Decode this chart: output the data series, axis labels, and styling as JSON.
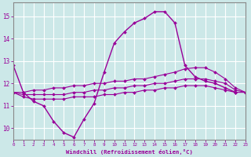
{
  "xlabel": "Windchill (Refroidissement éolien,°C)",
  "background_color": "#cce8e8",
  "grid_color": "#ffffff",
  "line_color": "#990099",
  "x_hours": [
    0,
    1,
    2,
    3,
    4,
    5,
    6,
    7,
    8,
    9,
    10,
    11,
    12,
    13,
    14,
    15,
    16,
    17,
    18,
    19,
    20,
    21,
    22,
    23
  ],
  "curve_main": [
    12.8,
    11.6,
    11.2,
    11.0,
    10.3,
    9.8,
    9.6,
    10.4,
    11.1,
    12.5,
    13.8,
    14.3,
    14.7,
    14.9,
    15.2,
    15.2,
    14.7,
    12.8,
    12.3,
    12.1,
    12.0,
    11.8,
    11.6,
    null
  ],
  "curve_max": [
    11.6,
    11.6,
    11.7,
    11.7,
    11.8,
    11.8,
    11.9,
    11.9,
    12.0,
    12.0,
    12.1,
    12.1,
    12.2,
    12.2,
    12.3,
    12.4,
    12.5,
    12.65,
    12.7,
    12.7,
    12.5,
    12.2,
    11.8,
    11.6
  ],
  "curve_avg": [
    11.6,
    11.5,
    11.5,
    11.5,
    11.5,
    11.5,
    11.6,
    11.6,
    11.7,
    11.7,
    11.8,
    11.8,
    11.9,
    11.9,
    12.0,
    12.0,
    12.1,
    12.2,
    12.2,
    12.2,
    12.1,
    12.0,
    11.7,
    11.6
  ],
  "curve_min": [
    11.6,
    11.4,
    11.3,
    11.3,
    11.3,
    11.3,
    11.4,
    11.4,
    11.4,
    11.5,
    11.5,
    11.6,
    11.6,
    11.7,
    11.7,
    11.8,
    11.8,
    11.9,
    11.9,
    11.9,
    11.8,
    11.7,
    11.6,
    11.6
  ],
  "ylim": [
    9.5,
    15.6
  ],
  "yticks": [
    10,
    11,
    12,
    13,
    14,
    15
  ],
  "xlim": [
    0,
    23
  ]
}
